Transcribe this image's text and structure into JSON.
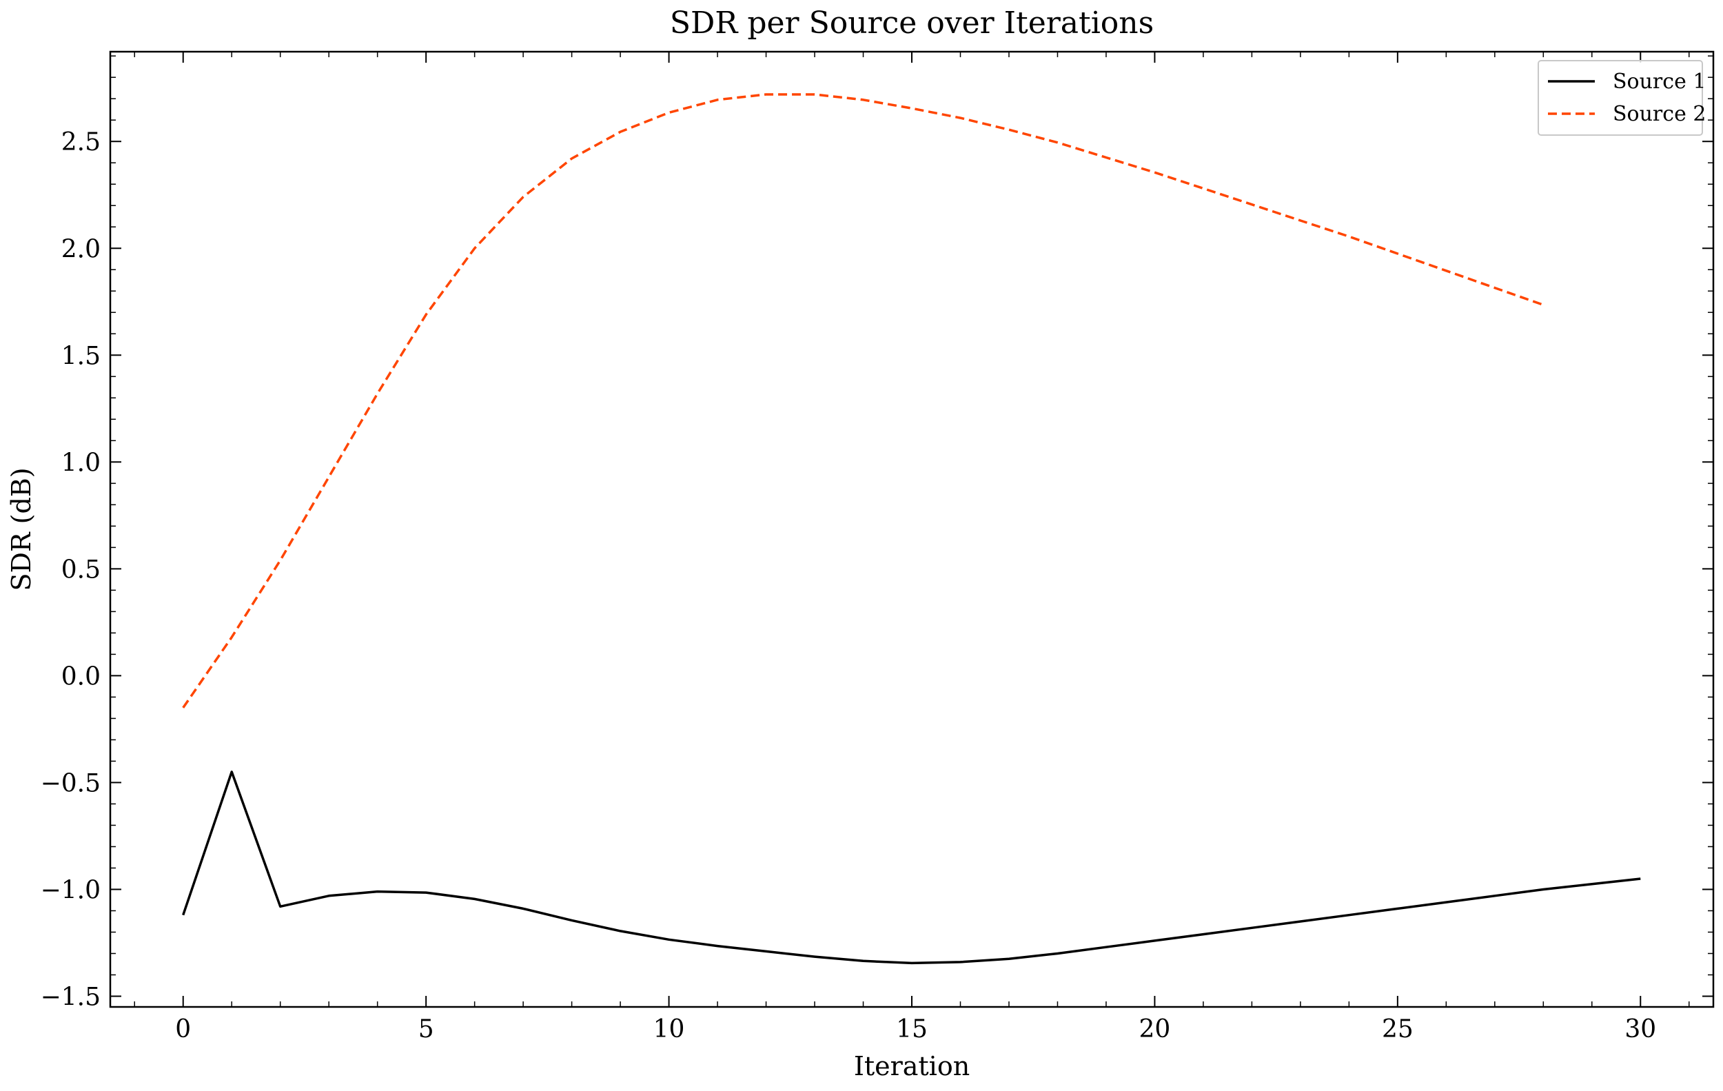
{
  "chart_data": {
    "type": "line",
    "title": "SDR per Source over Iterations",
    "xlabel": "Iteration",
    "ylabel": "SDR (dB)",
    "xlim": [
      -1.5,
      31.5
    ],
    "ylim": [
      -1.55,
      2.92
    ],
    "xticks": [
      0,
      5,
      10,
      15,
      20,
      25,
      30
    ],
    "yticks": [
      -1.5,
      -1.0,
      -0.5,
      0.0,
      0.5,
      1.0,
      1.5,
      2.0,
      2.5
    ],
    "yticklabels": [
      "−1.5",
      "−1.0",
      "−0.5",
      "0.0",
      "0.5",
      "1.0",
      "1.5",
      "2.0",
      "2.5"
    ],
    "grid": false,
    "legend_position": "top-right",
    "series": [
      {
        "name": "Source 1",
        "color": "#000000",
        "style": "solid",
        "x": [
          0,
          1,
          2,
          3,
          4,
          5,
          6,
          7,
          8,
          9,
          10,
          11,
          12,
          13,
          14,
          15,
          16,
          17,
          18,
          19,
          20,
          21,
          22,
          23,
          24,
          25,
          26,
          27,
          28,
          29,
          30
        ],
        "y": [
          -1.12,
          -0.45,
          -1.08,
          -1.03,
          -1.01,
          -1.015,
          -1.045,
          -1.09,
          -1.145,
          -1.195,
          -1.235,
          -1.265,
          -1.29,
          -1.315,
          -1.335,
          -1.345,
          -1.34,
          -1.325,
          -1.3,
          -1.27,
          -1.24,
          -1.21,
          -1.18,
          -1.15,
          -1.12,
          -1.09,
          -1.06,
          -1.03,
          -1.0,
          -0.975,
          -0.95
        ]
      },
      {
        "name": "Source 2",
        "color": "#ff4500",
        "style": "dashed",
        "x": [
          0,
          1,
          2,
          3,
          4,
          5,
          6,
          7,
          8,
          9,
          10,
          11,
          12,
          13,
          14,
          15,
          16,
          17,
          18,
          19,
          20,
          21,
          22,
          23,
          24,
          25,
          26,
          27,
          28
        ],
        "y": [
          -0.15,
          0.18,
          0.54,
          0.93,
          1.32,
          1.69,
          2.0,
          2.24,
          2.42,
          2.545,
          2.635,
          2.695,
          2.72,
          2.72,
          2.695,
          2.655,
          2.61,
          2.555,
          2.495,
          2.425,
          2.355,
          2.28,
          2.205,
          2.13,
          2.055,
          1.975,
          1.895,
          1.815,
          1.735
        ]
      }
    ]
  }
}
